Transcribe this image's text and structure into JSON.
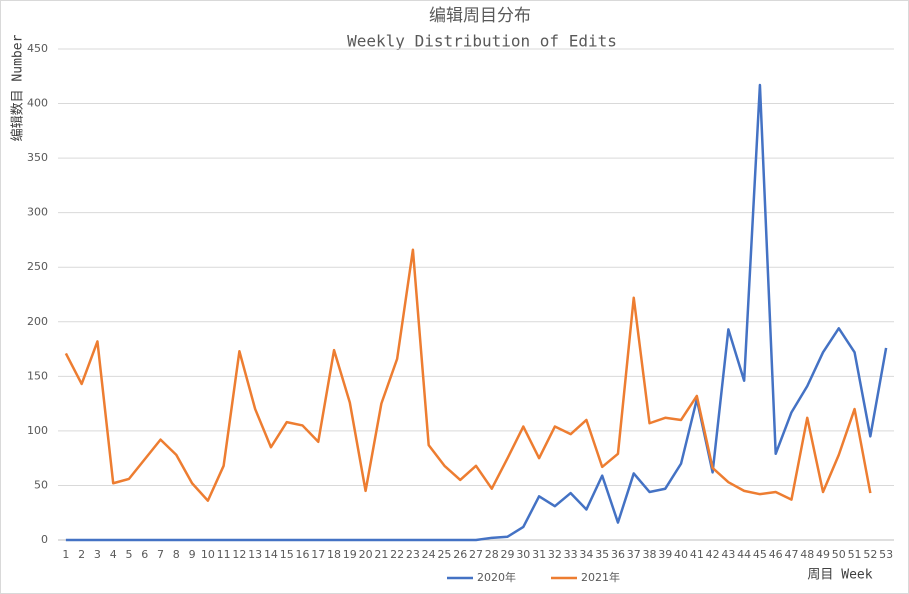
{
  "chart_data": {
    "type": "line",
    "title": "编辑周目分布",
    "subtitle": "Weekly Distribution of  Edits",
    "y_label": "编辑数目 Number",
    "x_label": "周目 Week",
    "categories": [
      "1",
      "2",
      "3",
      "4",
      "5",
      "6",
      "7",
      "8",
      "9",
      "10",
      "11",
      "12",
      "13",
      "14",
      "15",
      "16",
      "17",
      "18",
      "19",
      "20",
      "21",
      "22",
      "23",
      "24",
      "25",
      "26",
      "27",
      "28",
      "29",
      "30",
      "31",
      "32",
      "33",
      "34",
      "35",
      "36",
      "37",
      "38",
      "39",
      "40",
      "41",
      "42",
      "43",
      "44",
      "45",
      "46",
      "47",
      "48",
      "49",
      "50",
      "51",
      "52",
      "53"
    ],
    "series": [
      {
        "name": "2020年",
        "color": "#4472c4",
        "values": [
          0,
          0,
          0,
          0,
          0,
          0,
          0,
          0,
          0,
          0,
          0,
          0,
          0,
          0,
          0,
          0,
          0,
          0,
          0,
          0,
          0,
          0,
          0,
          0,
          0,
          0,
          0,
          2,
          3,
          12,
          40,
          31,
          43,
          28,
          59,
          16,
          61,
          44,
          47,
          70,
          129,
          62,
          193,
          146,
          417,
          79,
          117,
          141,
          172,
          194,
          172,
          95,
          176
        ]
      },
      {
        "name": "2021年",
        "color": "#ed7d31",
        "values": [
          171,
          143,
          182,
          52,
          56,
          74,
          92,
          78,
          52,
          36,
          68,
          173,
          120,
          85,
          108,
          105,
          90,
          174,
          126,
          45,
          125,
          166,
          266,
          87,
          68,
          55,
          68,
          47,
          75,
          104,
          75,
          104,
          97,
          110,
          67,
          79,
          222,
          107,
          112,
          110,
          132,
          66,
          53,
          45,
          42,
          44,
          37,
          112,
          44,
          78,
          120,
          43,
          null
        ]
      }
    ],
    "ylim": [
      0,
      450
    ],
    "yticks": [
      0,
      50,
      100,
      150,
      200,
      250,
      300,
      350,
      400,
      450
    ],
    "grid": true,
    "legend": "bottom"
  }
}
